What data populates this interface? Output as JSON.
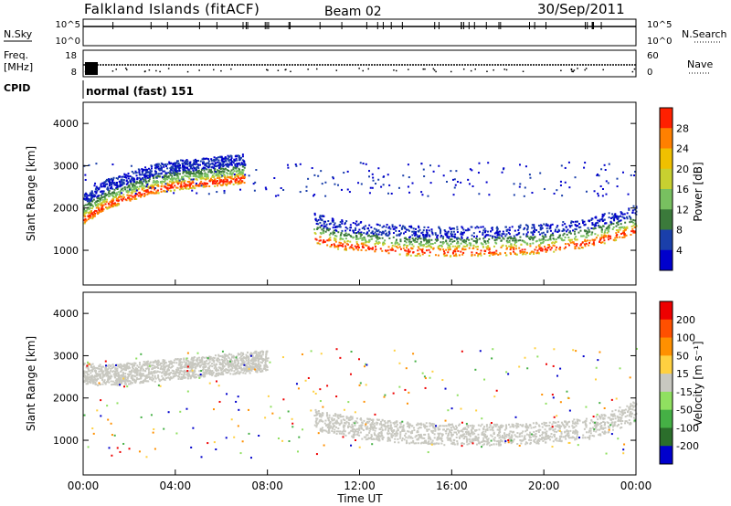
{
  "header": {
    "station": "Falkland Islands (fitACF)",
    "beam": "Beam 02",
    "date": "30/Sep/2011"
  },
  "summary": {
    "nsky_label": "N.Sky",
    "nsky_ticks": [
      "10^5",
      "10^0"
    ],
    "nsearch_label": "N.Search",
    "nsearch_ticks": [
      "10^5",
      "10^0"
    ],
    "freq_label_1": "Freq.",
    "freq_label_2": "[MHz]",
    "freq_ticks": [
      "18",
      "8"
    ],
    "nave_label": "Nave",
    "nave_ticks": [
      "60",
      "0"
    ],
    "cpid_label": "CPID",
    "cpid_text": "normal (fast) 151"
  },
  "chart_data": [
    {
      "type": "heatmap",
      "panel": "power",
      "xlabel": "",
      "ylabel": "Slant Range [km]",
      "ylim": [
        180,
        4500
      ],
      "yticks": [
        "4000",
        "3000",
        "2000",
        "1000"
      ],
      "colorbar_label": "Power [dB]",
      "colorbar_ticks": [
        "28",
        "24",
        "20",
        "16",
        "12",
        "8",
        "4"
      ],
      "colorbar_colors": [
        "#0000cc",
        "#1a3faa",
        "#3b7a3b",
        "#78c060",
        "#c8d030",
        "#f0c000",
        "#ff8000",
        "#ff2000"
      ],
      "bands": [
        {
          "time_h": [
            0,
            1,
            2,
            3,
            4,
            5,
            6,
            7
          ],
          "range_km": [
            1750,
            2100,
            2280,
            2450,
            2550,
            2600,
            2650,
            2700
          ],
          "power_db": 24
        },
        {
          "time_h": [
            10,
            11,
            12,
            13,
            14,
            16,
            18,
            20,
            22,
            24
          ],
          "range_km": [
            1300,
            1150,
            1100,
            1050,
            1000,
            980,
            1000,
            1050,
            1200,
            1500
          ],
          "power_db": 28
        }
      ]
    },
    {
      "type": "heatmap",
      "panel": "velocity",
      "xlabel": "Time UT",
      "ylabel": "Slant Range [km]",
      "ylim": [
        180,
        4500
      ],
      "yticks": [
        "4000",
        "3000",
        "2000",
        "1000"
      ],
      "xticks": [
        "00:00",
        "04:00",
        "08:00",
        "12:00",
        "16:00",
        "20:00",
        "00:00"
      ],
      "colorbar_label": "Velocity [m s⁻¹]",
      "colorbar_ticks": [
        "200",
        "100",
        "50",
        "15",
        "-15",
        "-50",
        "-100",
        "-200"
      ],
      "colorbar_colors": [
        "#0000cc",
        "#2b6e2b",
        "#45b045",
        "#90e060",
        "#c8c8c0",
        "#ffd040",
        "#ff9000",
        "#ff5000",
        "#ee0000"
      ],
      "bands": [
        {
          "time_h": [
            0,
            1,
            2,
            3,
            4,
            5,
            6,
            7,
            8
          ],
          "range_km": [
            2500,
            2450,
            2500,
            2550,
            2600,
            2650,
            2700,
            2750,
            2800
          ],
          "velocity_ms": 0
        },
        {
          "time_h": [
            10,
            12,
            14,
            16,
            18,
            20,
            22,
            24
          ],
          "range_km": [
            1400,
            1200,
            1100,
            1050,
            1050,
            1100,
            1200,
            1600
          ],
          "velocity_ms": 0
        }
      ]
    }
  ]
}
